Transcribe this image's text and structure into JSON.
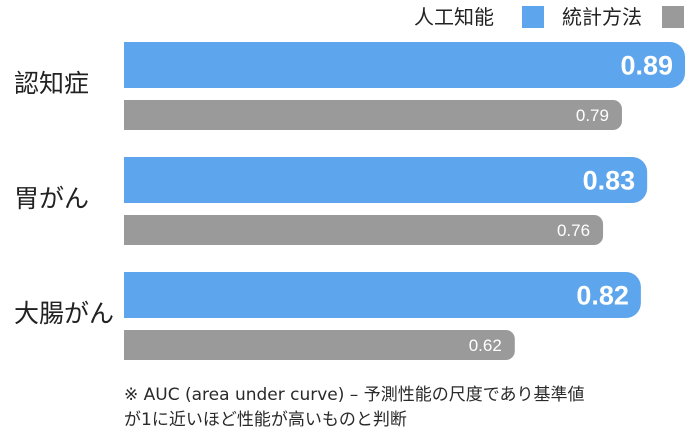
{
  "chart_data": {
    "type": "bar",
    "orientation": "horizontal",
    "categories": [
      "認知症",
      "胃がん",
      "大腸がん"
    ],
    "series": [
      {
        "name": "人工知能",
        "values": [
          0.89,
          0.83,
          0.82
        ],
        "color": "#5da5ec",
        "label_style": "bold-white"
      },
      {
        "name": "統計方法",
        "values": [
          0.79,
          0.76,
          0.62
        ],
        "color": "#9a9a9a",
        "label_style": "light-white"
      }
    ],
    "xlim": [
      0,
      0.89
    ],
    "grid": false,
    "legend_position": "top-right"
  },
  "footnote": {
    "line1": "※ AUC (area under curve) – 予測性能の尺度であり基準値",
    "line2": "が1に近いほど性能が高いものと判断"
  }
}
